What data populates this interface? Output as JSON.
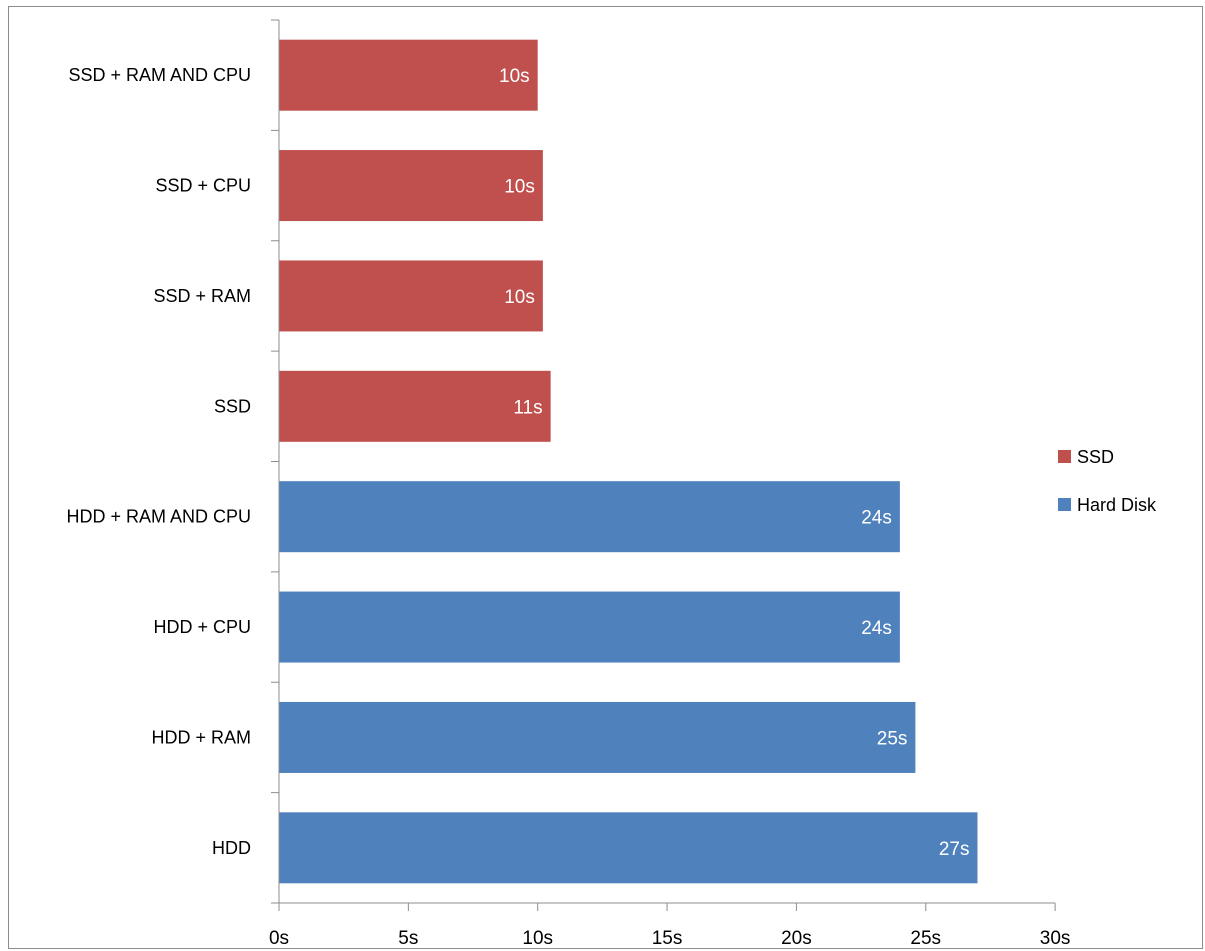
{
  "chart_data": {
    "type": "bar",
    "orientation": "horizontal",
    "title": "",
    "xlabel": "",
    "ylabel": "",
    "xlim": [
      0,
      30
    ],
    "x_ticks": [
      "0s",
      "5s",
      "10s",
      "15s",
      "20s",
      "25s",
      "30s"
    ],
    "grid": false,
    "legend_position": "right",
    "categories": [
      "SSD + RAM AND CPU",
      "SSD + CPU",
      "SSD + RAM",
      "SSD",
      "HDD + RAM AND CPU",
      "HDD + CPU",
      "HDD + RAM",
      "HDD"
    ],
    "values": [
      10.0,
      10.2,
      10.2,
      10.5,
      24.0,
      24.0,
      24.6,
      27.0
    ],
    "data_labels": [
      "10s",
      "10s",
      "10s",
      "11s",
      "24s",
      "24s",
      "25s",
      "27s"
    ],
    "series_of_bar": [
      "SSD",
      "SSD",
      "SSD",
      "SSD",
      "Hard Disk",
      "Hard Disk",
      "Hard Disk",
      "Hard Disk"
    ],
    "series": [
      {
        "name": "SSD",
        "color": "#C0504D"
      },
      {
        "name": "Hard Disk",
        "color": "#4F81BD"
      }
    ]
  }
}
